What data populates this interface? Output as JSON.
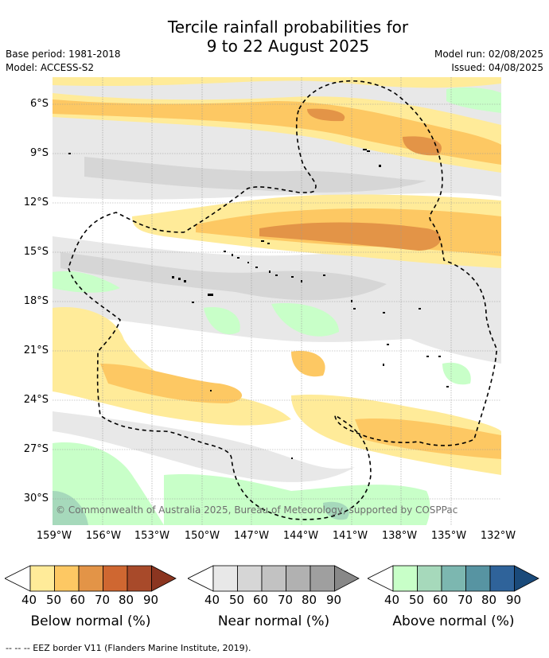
{
  "title_line1": "Tercile rainfall probabilities for",
  "title_line2": "9 to 22 August 2025",
  "base_period": "Base period: 1981-2018",
  "model": "Model: ACCESS-S2",
  "model_run": "Model run: 02/08/2025",
  "issued": "Issued: 04/08/2025",
  "copyright": "© Commonwealth of Australia 2025, Bureau of Meteorology, supported by COSPPac",
  "x_ticks": [
    "159°W",
    "156°W",
    "153°W",
    "150°W",
    "147°W",
    "144°W",
    "141°W",
    "138°W",
    "135°W",
    "132°W"
  ],
  "y_ticks": [
    "6°S",
    "9°S",
    "12°S",
    "15°S",
    "18°S",
    "21°S",
    "24°S",
    "27°S",
    "30°S"
  ],
  "colorbars": [
    {
      "name": "below",
      "title": "Below normal (%)",
      "labels": [
        "40",
        "50",
        "60",
        "70",
        "80",
        "90"
      ],
      "colors": [
        "#ffffff",
        "#ffeb99",
        "#fdc863",
        "#e39447",
        "#cf6731",
        "#a84a2a",
        "#8b3520"
      ]
    },
    {
      "name": "near",
      "title": "Near normal (%)",
      "labels": [
        "40",
        "50",
        "60",
        "70",
        "80",
        "90"
      ],
      "colors": [
        "#ffffff",
        "#e8e8e8",
        "#d6d6d6",
        "#c2c2c2",
        "#b1b1b1",
        "#9f9f9f",
        "#888888"
      ]
    },
    {
      "name": "above",
      "title": "Above normal (%)",
      "labels": [
        "40",
        "50",
        "60",
        "70",
        "80",
        "90"
      ],
      "colors": [
        "#ffffff",
        "#c8ffc8",
        "#a6d9bb",
        "#7cb7b0",
        "#5794a2",
        "#2f639a",
        "#1a4a7a"
      ]
    }
  ],
  "footnote": "-- -- -- EEZ border V11 (Flanders Marine Institute, 2019).",
  "map_colors": {
    "gray1": "#e8e8e8",
    "gray2": "#d6d6d6",
    "orange1": "#ffeb99",
    "orange2": "#fdc863",
    "orange3": "#e39447",
    "green1": "#c8ffc8",
    "green2": "#a6d9bb",
    "green3": "#7cb7b0"
  }
}
